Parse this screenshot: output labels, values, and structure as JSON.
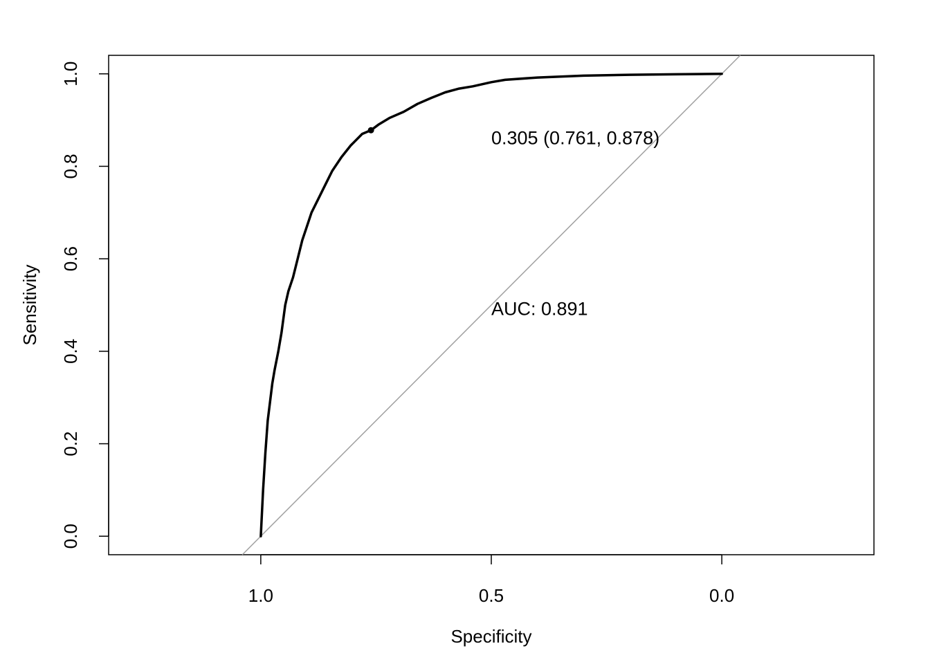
{
  "chart_data": {
    "type": "line",
    "xlabel": "Specificity",
    "ylabel": "Sensitivity",
    "x_reversed": true,
    "xlim": [
      1.33,
      -0.33
    ],
    "ylim": [
      -0.04,
      1.04
    ],
    "x_ticks": [
      {
        "value": 1.0,
        "label": "1.0"
      },
      {
        "value": 0.5,
        "label": "0.5"
      },
      {
        "value": 0.0,
        "label": "0.0"
      }
    ],
    "y_ticks": [
      {
        "value": 0.0,
        "label": "0.0"
      },
      {
        "value": 0.2,
        "label": "0.2"
      },
      {
        "value": 0.4,
        "label": "0.4"
      },
      {
        "value": 0.6,
        "label": "0.6"
      },
      {
        "value": 0.8,
        "label": "0.8"
      },
      {
        "value": 1.0,
        "label": "1.0"
      }
    ],
    "grid": false,
    "series": [
      {
        "color": "#000000",
        "points": [
          [
            1.0,
            0.0
          ],
          [
            0.995,
            0.1
          ],
          [
            0.99,
            0.18
          ],
          [
            0.985,
            0.25
          ],
          [
            0.98,
            0.29
          ],
          [
            0.975,
            0.33
          ],
          [
            0.97,
            0.36
          ],
          [
            0.962,
            0.4
          ],
          [
            0.955,
            0.44
          ],
          [
            0.947,
            0.5
          ],
          [
            0.94,
            0.53
          ],
          [
            0.93,
            0.56
          ],
          [
            0.92,
            0.6
          ],
          [
            0.91,
            0.64
          ],
          [
            0.9,
            0.67
          ],
          [
            0.89,
            0.7
          ],
          [
            0.875,
            0.73
          ],
          [
            0.86,
            0.76
          ],
          [
            0.845,
            0.79
          ],
          [
            0.825,
            0.82
          ],
          [
            0.805,
            0.845
          ],
          [
            0.78,
            0.87
          ],
          [
            0.761,
            0.878
          ],
          [
            0.745,
            0.89
          ],
          [
            0.72,
            0.905
          ],
          [
            0.69,
            0.918
          ],
          [
            0.66,
            0.935
          ],
          [
            0.63,
            0.948
          ],
          [
            0.6,
            0.96
          ],
          [
            0.57,
            0.968
          ],
          [
            0.54,
            0.973
          ],
          [
            0.5,
            0.982
          ],
          [
            0.47,
            0.987
          ],
          [
            0.4,
            0.992
          ],
          [
            0.3,
            0.996
          ],
          [
            0.2,
            0.998
          ],
          [
            0.1,
            0.999
          ],
          [
            0.0,
            1.0
          ]
        ]
      }
    ],
    "reference_line": {
      "color": "#a0a0a0",
      "intercept": 1,
      "slope": -1
    },
    "threshold_point": {
      "specificity": 0.761,
      "sensitivity": 0.878
    },
    "annotations": [
      {
        "text": "0.305 (0.761, 0.878)",
        "x": 0.5,
        "y": 0.848
      },
      {
        "text": "AUC: 0.891",
        "x": 0.5,
        "y": 0.478
      }
    ]
  }
}
